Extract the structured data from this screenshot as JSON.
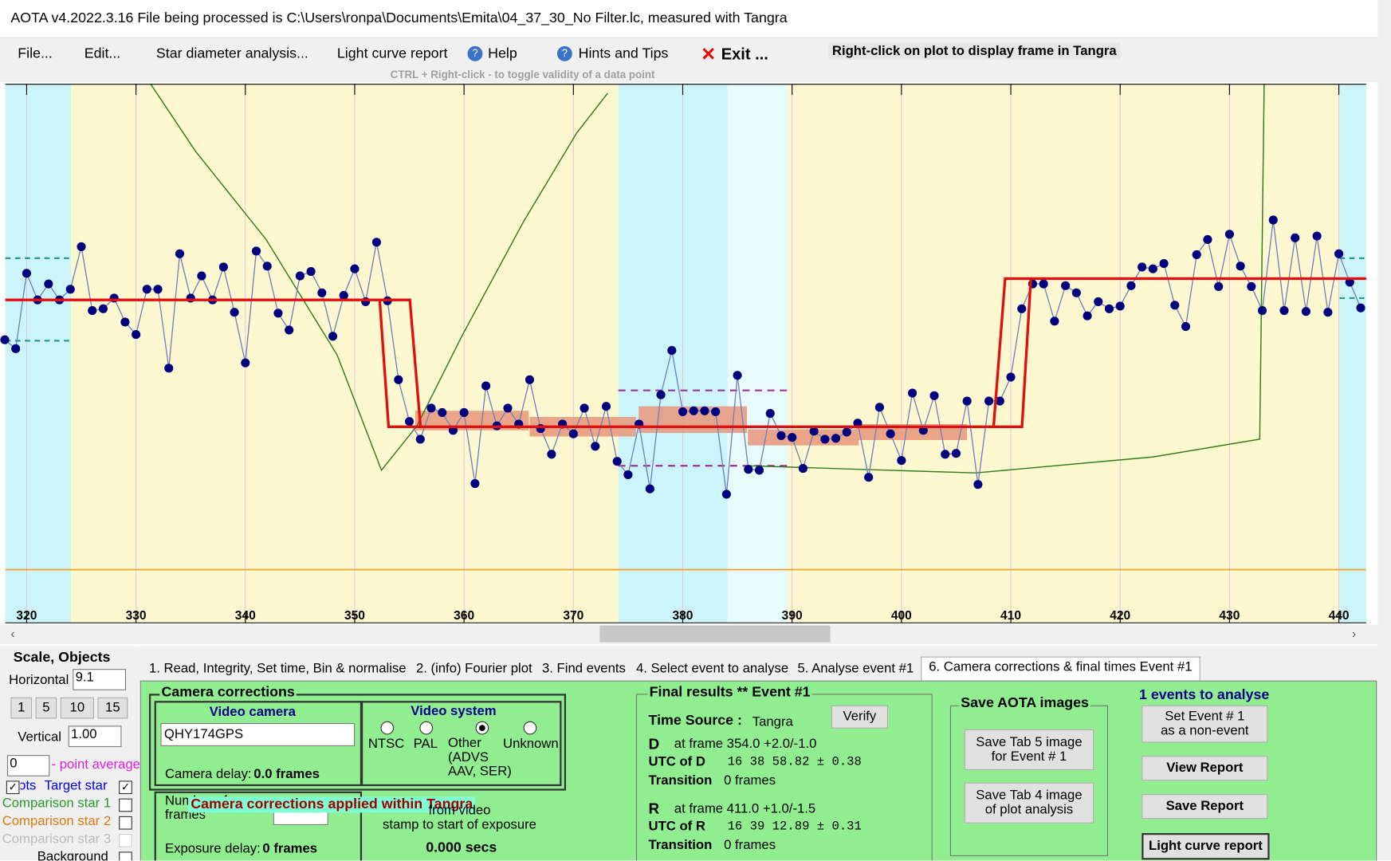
{
  "window_title": "AOTA v4.2022.3.16    File being processed is C:\\Users\\ronpa\\Documents\\Emita\\04_37_30_No Filter.lc, measured with Tangra",
  "menu": [
    "File...",
    "Edit...",
    "Star diameter analysis...",
    "Light curve report",
    "Help",
    "Hints and Tips",
    "Exit ..."
  ],
  "plot_hint": "Right-click on plot to display frame in Tangra",
  "plot_subhint": "CTRL + Right-click  -  to toggle validity of a data point",
  "chart_data": {
    "type": "scatter",
    "x": [
      318,
      319,
      320,
      321,
      322,
      323,
      324,
      325,
      326,
      327,
      328,
      329,
      330,
      331,
      332,
      333,
      334,
      335,
      336,
      337,
      338,
      339,
      340,
      341,
      342,
      343,
      344,
      345,
      346,
      347,
      348,
      349,
      350,
      351,
      352,
      353,
      354,
      355,
      356,
      357,
      358,
      359,
      360,
      361,
      362,
      363,
      364,
      365,
      366,
      367,
      368,
      369,
      370,
      371,
      372,
      373,
      374,
      375,
      376,
      377,
      378,
      379,
      380,
      381,
      382,
      383,
      384,
      385,
      386,
      387,
      388,
      389,
      390,
      391,
      392,
      393,
      394,
      395,
      396,
      397,
      398,
      399,
      400,
      401,
      402,
      403,
      404,
      405,
      406,
      407,
      408,
      409,
      410,
      411,
      412,
      413,
      414,
      415,
      416,
      417,
      418,
      419,
      420,
      421,
      422,
      423,
      424,
      425,
      426,
      427,
      428,
      429,
      430,
      431,
      432,
      433,
      434,
      435,
      436,
      437,
      438,
      439,
      440,
      441,
      442
    ],
    "values": [
      297,
      287,
      372,
      342,
      360,
      342,
      354,
      402,
      330,
      332,
      344,
      317,
      303,
      354,
      354,
      265,
      394,
      344,
      369,
      342,
      379,
      328,
      271,
      397,
      380,
      327,
      308,
      369,
      374,
      350,
      301,
      347,
      377,
      340,
      407,
      341,
      252,
      205,
      185,
      220,
      215,
      195,
      215,
      135,
      245,
      200,
      220,
      202,
      252,
      197,
      168,
      202,
      191,
      220,
      177,
      222,
      160,
      145,
      202,
      129,
      235,
      285,
      216,
      217,
      217,
      216,
      123,
      257,
      151,
      150,
      214,
      189,
      187,
      152,
      194,
      185,
      186,
      193,
      203,
      142,
      221,
      191,
      161,
      237,
      195,
      234,
      168,
      169,
      228,
      134,
      228,
      228,
      255,
      332,
      360,
      360,
      318,
      358,
      350,
      324,
      340,
      332,
      335,
      358,
      379,
      377,
      383,
      336,
      312,
      393,
      410,
      357,
      416,
      380,
      357,
      330,
      432,
      330,
      412,
      329,
      414,
      328,
      394,
      362,
      333
    ],
    "color": "#00007f",
    "xlim": [
      318.05,
      442.5
    ],
    "xticks": [
      320,
      330,
      340,
      350,
      360,
      370,
      380,
      390,
      400,
      410,
      420,
      430,
      440
    ],
    "ylim": [
      0,
      585
    ],
    "grid": true
  },
  "left_panel": {
    "title": "Scale,  Objects",
    "horizontal_label": "Horizontal",
    "horizontal_value": "9.1",
    "buttons": [
      "1",
      "5",
      "10",
      "15"
    ],
    "vertical_label": "Vertical",
    "vertical_value": "1.00",
    "point_average_value": "0",
    "point_average_label": "- point average",
    "dots_label": "Dots",
    "objects": [
      "Target star",
      "Comparison star 1",
      "Comparison star 2",
      "Comparison star 3",
      "Background"
    ]
  },
  "tabs": [
    "1.  Read, Integrity, Set time, Bin & normalise",
    "2. (info)  Fourier plot",
    "3. Find events",
    "4. Select event to analyse",
    "5. Analyse event #1",
    "6. Camera corrections & final times Event #1"
  ],
  "camera_corrections": {
    "title": "Camera corrections",
    "video_camera_title": "Video camera",
    "camera": "QHY174GPS",
    "camera_delay_label": "Camera delay:",
    "camera_delay_value": "0.0 frames",
    "video_system_title": "Video system",
    "systems": [
      "NTSC",
      "PAL",
      "Other\n(ADVS\nAAV, SER)",
      "Unknown"
    ],
    "frames_integrated_label": "Number of\nframes integrated",
    "banner": "Camera corrections applied within Tangra",
    "stamp_text": "from video\nstamp to start of exposure",
    "stamp_value": "0.000 secs",
    "exposure_delay_label": "Exposure delay:",
    "exposure_delay_value": "0 frames"
  },
  "final_results": {
    "title": "Final results  **  Event #1",
    "time_source_label": "Time Source :",
    "time_source": "Tangra",
    "verify": "Verify",
    "d_label": "D",
    "d_frame": "at frame 354.0  +2.0/-1.0",
    "utc_d_label": "UTC of D",
    "utc_d": "16 38 58.82  ± 0.38",
    "transition_label": "Transition",
    "d_transition": "0 frames",
    "r_label": "R",
    "r_frame": "at frame 411.0  +1.0/-1.5",
    "utc_r_label": "UTC of R",
    "utc_r": "16 39 12.89  ± 0.31",
    "r_transition": "0 frames"
  },
  "save_images": {
    "title": "Save AOTA images",
    "buttons": [
      "Save Tab 5 image\nfor Event # 1",
      "Save Tab 4 image\nof plot analysis"
    ]
  },
  "right_panel": {
    "events": "1  events to analyse",
    "buttons": [
      "Set Event # 1\nas a non-event",
      "View Report",
      "Save Report",
      "Light curve report"
    ]
  }
}
